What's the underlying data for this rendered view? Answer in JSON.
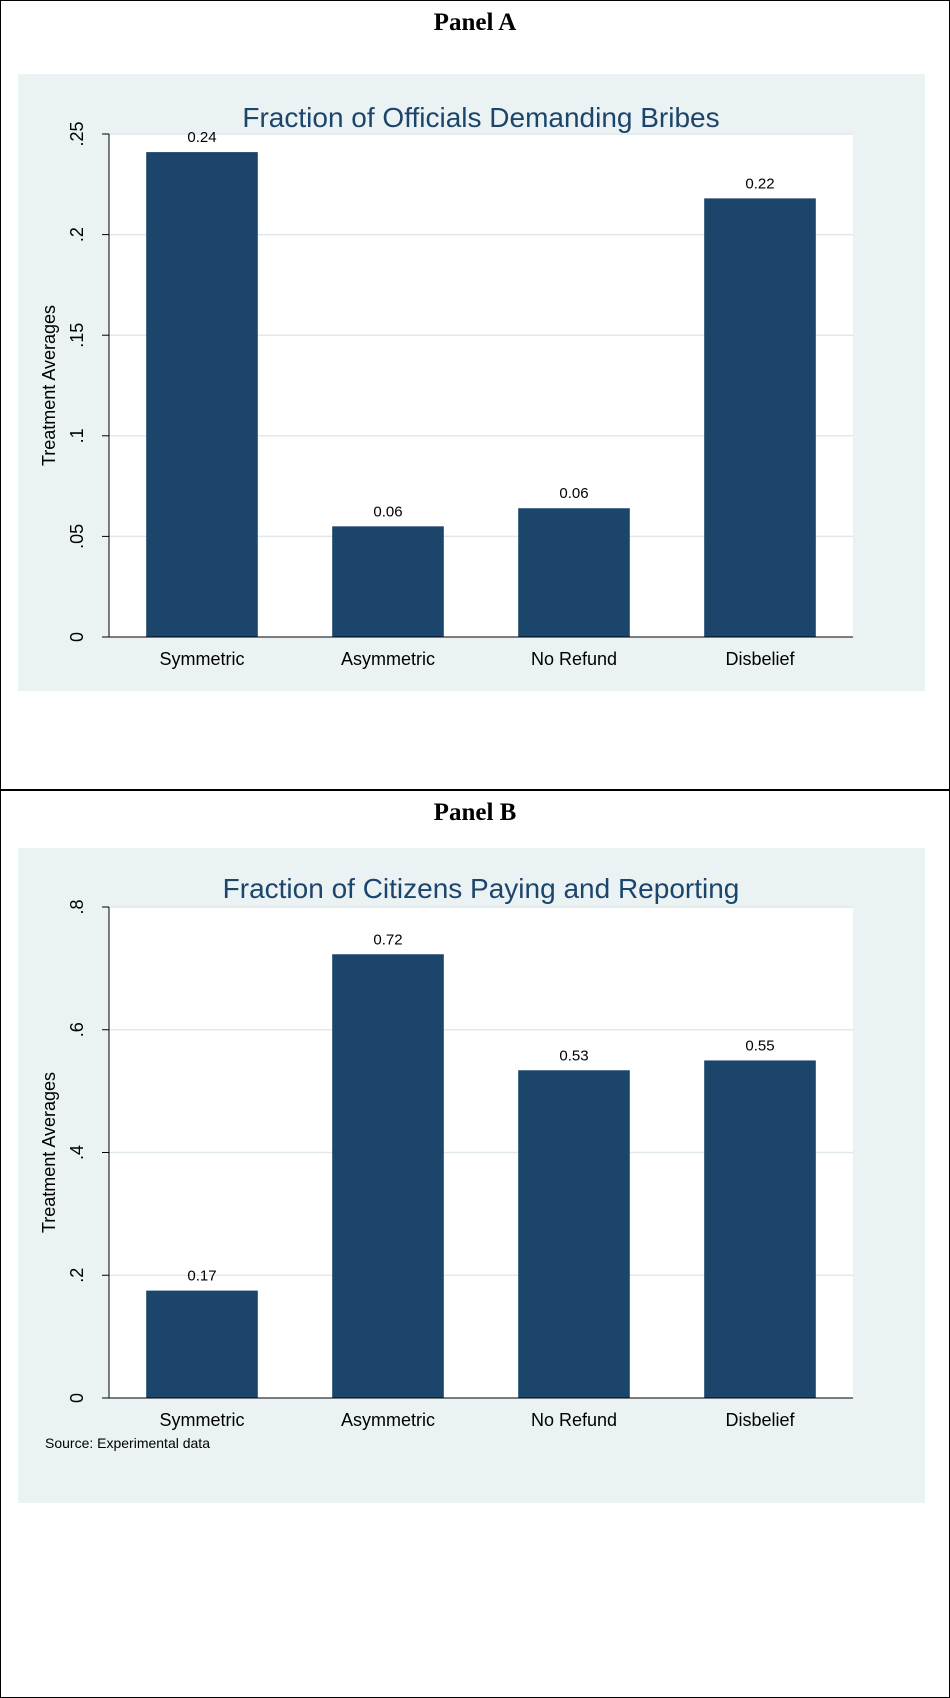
{
  "panels": {
    "a": {
      "heading": "Panel A"
    },
    "b": {
      "heading": "Panel B",
      "source_note": "Source: Experimental data"
    }
  },
  "colors": {
    "bar": "#1c456c",
    "background": "#eaf2f3",
    "plot_area": "#ffffff",
    "grid": "#dfe8ea",
    "title": "#1c456c",
    "text": "#000000"
  },
  "chart_data": [
    {
      "type": "bar",
      "title": "Fraction of Officials Demanding Bribes",
      "xlabel": "",
      "ylabel": "Treatment Averages",
      "categories": [
        "Symmetric",
        "Asymmetric",
        "No Refund",
        "Disbelief"
      ],
      "values": [
        0.241,
        0.055,
        0.064,
        0.218
      ],
      "data_labels": [
        "0.24",
        "0.06",
        "0.06",
        "0.22"
      ],
      "ylim": [
        0,
        0.25
      ],
      "yticks": [
        0,
        0.05,
        0.1,
        0.15,
        0.2,
        0.25
      ],
      "ytick_labels": [
        "0",
        ".05",
        ".1",
        ".15",
        ".2",
        ".25"
      ],
      "grid": true,
      "legend": "none"
    },
    {
      "type": "bar",
      "title": "Fraction of Citizens Paying and Reporting",
      "xlabel": "",
      "ylabel": "Treatment Averages",
      "categories": [
        "Symmetric",
        "Asymmetric",
        "No Refund",
        "Disbelief"
      ],
      "values": [
        0.175,
        0.723,
        0.534,
        0.55
      ],
      "data_labels": [
        "0.17",
        "0.72",
        "0.53",
        "0.55"
      ],
      "ylim": [
        0,
        0.8
      ],
      "yticks": [
        0,
        0.2,
        0.4,
        0.6,
        0.8
      ],
      "ytick_labels": [
        "0",
        ".2",
        ".4",
        ".6",
        ".8"
      ],
      "grid": true,
      "legend": "none"
    }
  ]
}
